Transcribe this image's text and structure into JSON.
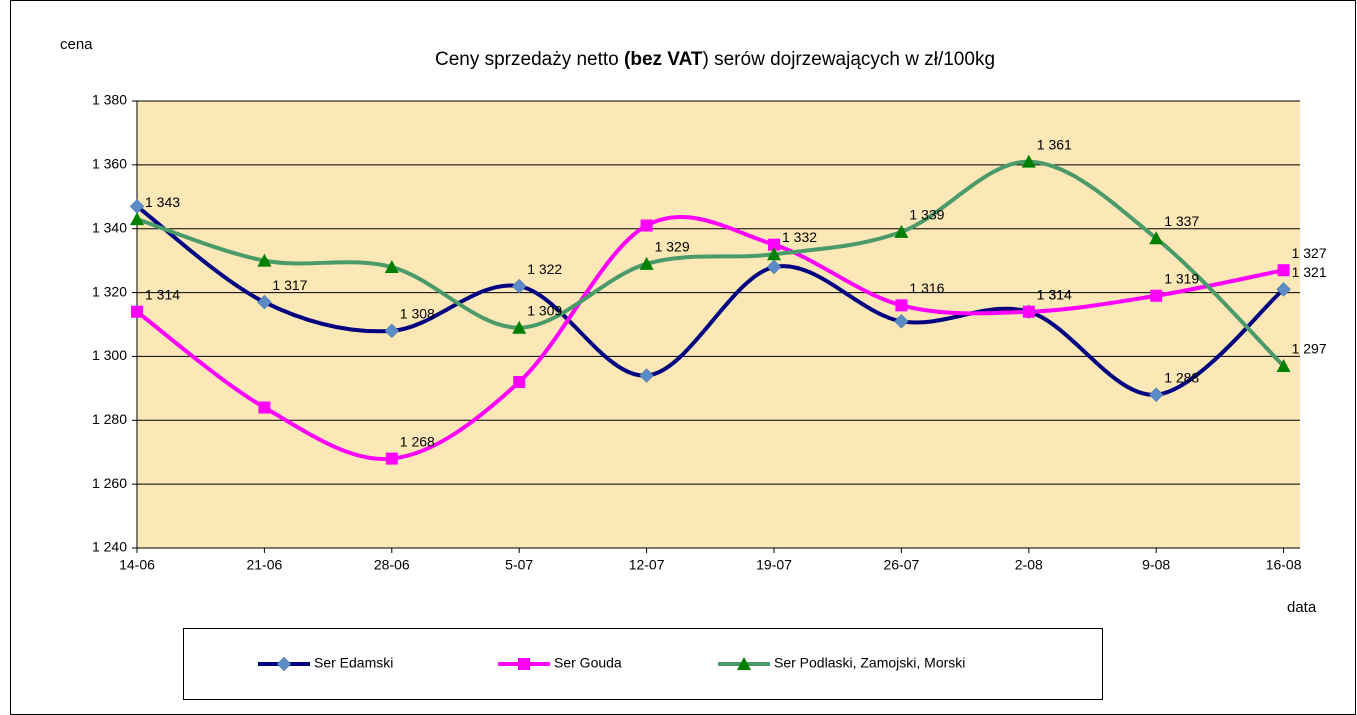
{
  "chart_data": {
    "type": "line",
    "title": [
      "Ceny sprzedaży netto ",
      "(bez VAT",
      ") serów dojrzewających  w zł/100kg"
    ],
    "ylabel": "cena",
    "xlabel": "data",
    "categories": [
      "14-06",
      "21-06",
      "28-06",
      "5-07",
      "12-07",
      "19-07",
      "26-07",
      "2-08",
      "9-08",
      "16-08"
    ],
    "ylim": [
      1240,
      1380
    ],
    "yticks": [
      {
        "value": 1240,
        "label": "1 240"
      },
      {
        "value": 1260,
        "label": "1 260"
      },
      {
        "value": 1280,
        "label": "1 280"
      },
      {
        "value": 1300,
        "label": "1 300"
      },
      {
        "value": 1320,
        "label": "1 320"
      },
      {
        "value": 1340,
        "label": "1 340"
      },
      {
        "value": 1360,
        "label": "1 360"
      },
      {
        "value": 1380,
        "label": "1 380"
      }
    ],
    "grid": true,
    "plot_background": "#fbe8b6",
    "legend": "bottom",
    "series": [
      {
        "name": "Ser Edamski",
        "color": "#000080",
        "marker": "diamond",
        "marker_color": "#5b8cc8",
        "values": [
          1347,
          1317,
          1308,
          1322,
          1294,
          1328,
          1311,
          1314,
          1288,
          1321
        ],
        "value_labels": [
          null,
          "1 317",
          "1 308",
          "1 322",
          null,
          null,
          null,
          "1 314",
          "1 288",
          "1 321"
        ]
      },
      {
        "name": "Ser Gouda",
        "color": "#ff00ff",
        "marker": "square",
        "marker_color": "#ff00ff",
        "values": [
          1314,
          1284,
          1268,
          1292,
          1341,
          1335,
          1316,
          1314,
          1319,
          1327
        ],
        "value_labels": [
          "1 314",
          null,
          "1 268",
          null,
          null,
          null,
          "1 316",
          "1 314",
          "1 319",
          "1 327"
        ]
      },
      {
        "name": "Ser Podlaski, Zamojski, Morski",
        "color": "#4a9a6a",
        "marker": "triangle",
        "marker_color": "#008000",
        "values": [
          1343,
          1330,
          1328,
          1309,
          1329,
          1332,
          1339,
          1361,
          1337,
          1297
        ],
        "value_labels": [
          "1 343",
          null,
          null,
          "1 309",
          "1 329",
          "1 332",
          "1 339",
          "1 361",
          "1 337",
          "1 297"
        ]
      }
    ]
  }
}
